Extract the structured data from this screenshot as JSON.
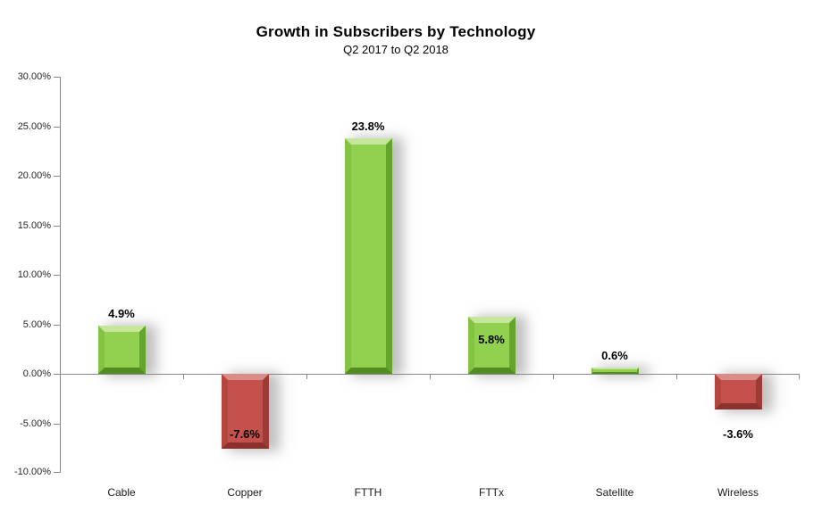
{
  "chart_data": {
    "type": "bar",
    "title": "Growth in Subscribers by Technology",
    "subtitle": "Q2 2017 to Q2 2018",
    "categories": [
      "Cable",
      "Copper",
      "FTTH",
      "FTTx",
      "Satellite",
      "Wireless"
    ],
    "values": [
      4.9,
      -7.6,
      23.8,
      5.8,
      0.6,
      -3.6
    ],
    "value_labels": [
      "4.9%",
      "-7.6%",
      "23.8%",
      "5.8%",
      "0.6%",
      "-3.6%"
    ],
    "label_placement": [
      "above",
      "inside-bottom",
      "above",
      "inside-top",
      "above",
      "below"
    ],
    "unit": "%",
    "xlabel": "",
    "ylabel": "",
    "ylim": [
      -10,
      30
    ],
    "ytick_step": 5,
    "ytick_labels": [
      "30.00%",
      "25.00%",
      "20.00%",
      "15.00%",
      "10.00%",
      "5.00%",
      "0.00%",
      "-5.00%",
      "-10.00%"
    ],
    "grid": false,
    "legend": false,
    "bar_colors": {
      "positive": "#92D050",
      "negative": "#C0504D"
    },
    "axis_color": "#898989"
  }
}
